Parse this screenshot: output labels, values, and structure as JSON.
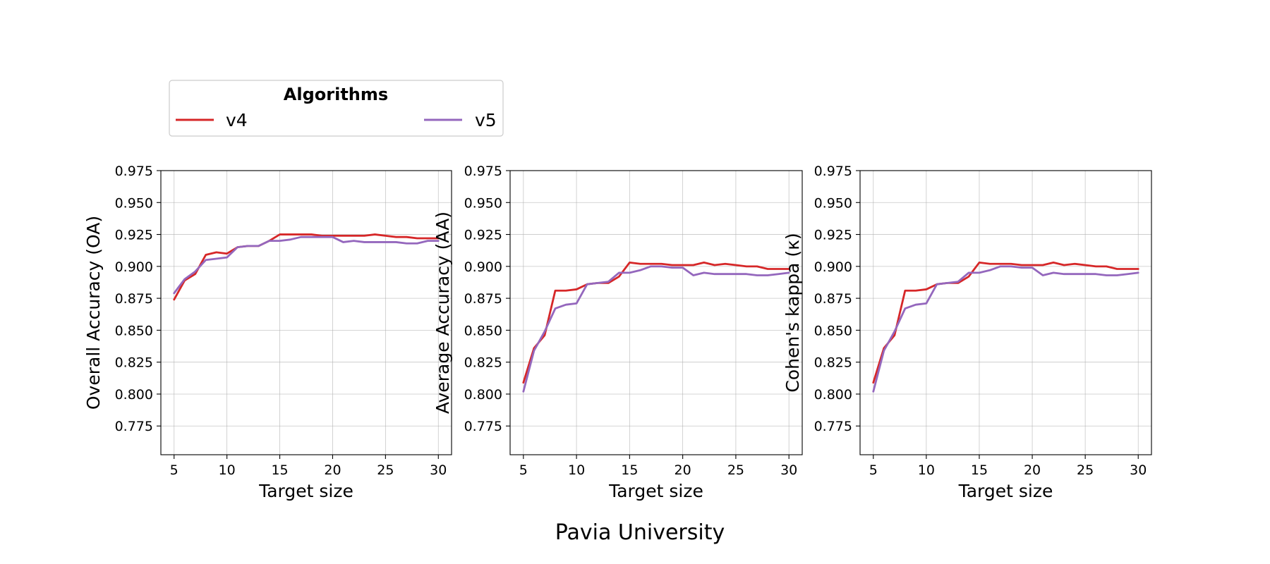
{
  "figure": {
    "suptitle": "Pavia University"
  },
  "legend": {
    "title": "Algorithms",
    "placement": "top-left",
    "entries": [
      {
        "name": "v4",
        "color": "#d62728"
      },
      {
        "name": "v5",
        "color": "#9467bd"
      }
    ]
  },
  "chart_data": [
    {
      "type": "line",
      "xlabel": "Target size",
      "ylabel": "Overall Accuracy (OA)",
      "xlim": [
        3.75,
        31.25
      ],
      "ylim": [
        0.7525,
        0.975
      ],
      "xticks": [
        5,
        10,
        15,
        20,
        25,
        30
      ],
      "yticks": [
        0.775,
        0.8,
        0.825,
        0.85,
        0.875,
        0.9,
        0.925,
        0.95,
        0.975
      ],
      "grid": true,
      "x": [
        5,
        6,
        7,
        8,
        9,
        10,
        11,
        12,
        13,
        14,
        15,
        16,
        17,
        18,
        19,
        20,
        21,
        22,
        23,
        24,
        25,
        26,
        27,
        28,
        29,
        30
      ],
      "series": [
        {
          "name": "v4",
          "color": "#d62728",
          "values": [
            0.874,
            0.889,
            0.894,
            0.909,
            0.911,
            0.91,
            0.915,
            0.916,
            0.916,
            0.92,
            0.925,
            0.925,
            0.925,
            0.925,
            0.924,
            0.924,
            0.924,
            0.924,
            0.924,
            0.925,
            0.924,
            0.923,
            0.923,
            0.922,
            0.922,
            0.922
          ]
        },
        {
          "name": "v5",
          "color": "#9467bd",
          "values": [
            0.879,
            0.89,
            0.896,
            0.905,
            0.906,
            0.907,
            0.915,
            0.916,
            0.916,
            0.92,
            0.92,
            0.921,
            0.923,
            0.923,
            0.923,
            0.923,
            0.919,
            0.92,
            0.919,
            0.919,
            0.919,
            0.919,
            0.918,
            0.918,
            0.92,
            0.92
          ]
        }
      ]
    },
    {
      "type": "line",
      "xlabel": "Target size",
      "ylabel": "Average Accuracy (AA)",
      "xlim": [
        3.75,
        31.25
      ],
      "ylim": [
        0.7525,
        0.975
      ],
      "xticks": [
        5,
        10,
        15,
        20,
        25,
        30
      ],
      "yticks": [
        0.775,
        0.8,
        0.825,
        0.85,
        0.875,
        0.9,
        0.925,
        0.95,
        0.975
      ],
      "grid": true,
      "x": [
        5,
        6,
        7,
        8,
        9,
        10,
        11,
        12,
        13,
        14,
        15,
        16,
        17,
        18,
        19,
        20,
        21,
        22,
        23,
        24,
        25,
        26,
        27,
        28,
        29,
        30
      ],
      "series": [
        {
          "name": "v4",
          "color": "#d62728",
          "values": [
            0.809,
            0.836,
            0.846,
            0.881,
            0.881,
            0.882,
            0.886,
            0.887,
            0.887,
            0.892,
            0.903,
            0.902,
            0.902,
            0.902,
            0.901,
            0.901,
            0.901,
            0.903,
            0.901,
            0.902,
            0.901,
            0.9,
            0.9,
            0.898,
            0.898,
            0.898
          ]
        },
        {
          "name": "v5",
          "color": "#9467bd",
          "values": [
            0.802,
            0.834,
            0.849,
            0.867,
            0.87,
            0.871,
            0.886,
            0.887,
            0.888,
            0.895,
            0.895,
            0.897,
            0.9,
            0.9,
            0.899,
            0.899,
            0.893,
            0.895,
            0.894,
            0.894,
            0.894,
            0.894,
            0.893,
            0.893,
            0.894,
            0.895
          ]
        }
      ]
    },
    {
      "type": "line",
      "xlabel": "Target size",
      "ylabel": "Cohen's kappa (κ)",
      "xlim": [
        3.75,
        31.25
      ],
      "ylim": [
        0.7525,
        0.975
      ],
      "xticks": [
        5,
        10,
        15,
        20,
        25,
        30
      ],
      "yticks": [
        0.775,
        0.8,
        0.825,
        0.85,
        0.875,
        0.9,
        0.925,
        0.95,
        0.975
      ],
      "grid": true,
      "x": [
        5,
        6,
        7,
        8,
        9,
        10,
        11,
        12,
        13,
        14,
        15,
        16,
        17,
        18,
        19,
        20,
        21,
        22,
        23,
        24,
        25,
        26,
        27,
        28,
        29,
        30
      ],
      "series": [
        {
          "name": "v4",
          "color": "#d62728",
          "values": [
            0.809,
            0.836,
            0.846,
            0.881,
            0.881,
            0.882,
            0.886,
            0.887,
            0.887,
            0.892,
            0.903,
            0.902,
            0.902,
            0.902,
            0.901,
            0.901,
            0.901,
            0.903,
            0.901,
            0.902,
            0.901,
            0.9,
            0.9,
            0.898,
            0.898,
            0.898
          ]
        },
        {
          "name": "v5",
          "color": "#9467bd",
          "values": [
            0.802,
            0.834,
            0.849,
            0.867,
            0.87,
            0.871,
            0.886,
            0.887,
            0.888,
            0.895,
            0.895,
            0.897,
            0.9,
            0.9,
            0.899,
            0.899,
            0.893,
            0.895,
            0.894,
            0.894,
            0.894,
            0.894,
            0.893,
            0.893,
            0.894,
            0.895
          ]
        }
      ]
    }
  ]
}
